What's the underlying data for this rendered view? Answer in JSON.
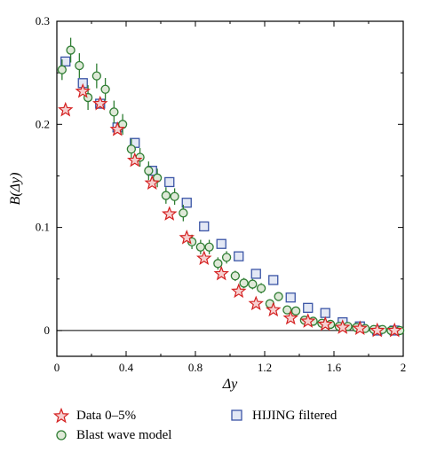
{
  "chart_data": {
    "type": "scatter",
    "xlabel": "Δy",
    "ylabel": "B(Δy)",
    "xlim": [
      0,
      2
    ],
    "ylim": [
      -0.025,
      0.3
    ],
    "xticks": [
      "0",
      "0.4",
      "0.8",
      "1.2",
      "1.6",
      "2"
    ],
    "yticks": [
      "0",
      "0.1",
      "0.2",
      "0.3"
    ],
    "grid": false,
    "legend_position": "bottom",
    "series": [
      {
        "name": "Data 0–5%",
        "marker": "star",
        "color": "#d42020",
        "points": [
          [
            0.05,
            0.214
          ],
          [
            0.15,
            0.232
          ],
          [
            0.25,
            0.22
          ],
          [
            0.35,
            0.195
          ],
          [
            0.45,
            0.165
          ],
          [
            0.55,
            0.143
          ],
          [
            0.65,
            0.113
          ],
          [
            0.75,
            0.09
          ],
          [
            0.85,
            0.07
          ],
          [
            0.95,
            0.055
          ],
          [
            1.05,
            0.038
          ],
          [
            1.15,
            0.026
          ],
          [
            1.25,
            0.02
          ],
          [
            1.35,
            0.012
          ],
          [
            1.45,
            0.009
          ],
          [
            1.55,
            0.006
          ],
          [
            1.65,
            0.003
          ],
          [
            1.75,
            0.002
          ],
          [
            1.85,
            0.0
          ],
          [
            1.95,
            0.0
          ]
        ]
      },
      {
        "name": "Blast wave model",
        "marker": "circle",
        "color": "#2e7d32",
        "points": [
          [
            0.03,
            0.253,
            0.01
          ],
          [
            0.08,
            0.272,
            0.012
          ],
          [
            0.13,
            0.257,
            0.012
          ],
          [
            0.18,
            0.226,
            0.012
          ],
          [
            0.23,
            0.247,
            0.012
          ],
          [
            0.28,
            0.234,
            0.011
          ],
          [
            0.33,
            0.212,
            0.011
          ],
          [
            0.38,
            0.2,
            0.01
          ],
          [
            0.43,
            0.176,
            0.01
          ],
          [
            0.48,
            0.168,
            0.009
          ],
          [
            0.53,
            0.155,
            0.009
          ],
          [
            0.58,
            0.148,
            0.009
          ],
          [
            0.63,
            0.131,
            0.008
          ],
          [
            0.68,
            0.13,
            0.008
          ],
          [
            0.73,
            0.114,
            0.008
          ],
          [
            0.78,
            0.086,
            0.007
          ],
          [
            0.83,
            0.081,
            0.007
          ],
          [
            0.88,
            0.081,
            0.007
          ],
          [
            0.93,
            0.065,
            0.006
          ],
          [
            0.98,
            0.071,
            0.006
          ],
          [
            1.03,
            0.053,
            0.005
          ],
          [
            1.08,
            0.046,
            0.005
          ],
          [
            1.13,
            0.045,
            0.005
          ],
          [
            1.18,
            0.041,
            0.005
          ],
          [
            1.23,
            0.026,
            0.004
          ],
          [
            1.28,
            0.033,
            0.004
          ],
          [
            1.33,
            0.02,
            0.004
          ],
          [
            1.38,
            0.019,
            0.004
          ],
          [
            1.43,
            0.01,
            0.003
          ],
          [
            1.48,
            0.009,
            0.003
          ],
          [
            1.53,
            0.007,
            0.003
          ],
          [
            1.58,
            0.006,
            0.003
          ],
          [
            1.63,
            0.004,
            0.002
          ],
          [
            1.68,
            0.004,
            0.002
          ],
          [
            1.73,
            0.003,
            0.002
          ],
          [
            1.78,
            0.002,
            0.002
          ],
          [
            1.83,
            0.001,
            0.002
          ],
          [
            1.88,
            0.001,
            0.002
          ],
          [
            1.93,
            0.0,
            0.002
          ],
          [
            1.98,
            0.0,
            0.002
          ]
        ]
      },
      {
        "name": "HIJING filtered",
        "marker": "square",
        "color": "#3b55a6",
        "points": [
          [
            0.05,
            0.261
          ],
          [
            0.15,
            0.24
          ],
          [
            0.25,
            0.22
          ],
          [
            0.35,
            0.197
          ],
          [
            0.45,
            0.182
          ],
          [
            0.55,
            0.155
          ],
          [
            0.65,
            0.144
          ],
          [
            0.75,
            0.124
          ],
          [
            0.85,
            0.101
          ],
          [
            0.95,
            0.084
          ],
          [
            1.05,
            0.072
          ],
          [
            1.15,
            0.055
          ],
          [
            1.25,
            0.049
          ],
          [
            1.35,
            0.032
          ],
          [
            1.45,
            0.022
          ],
          [
            1.55,
            0.017
          ],
          [
            1.65,
            0.008
          ],
          [
            1.75,
            0.004
          ],
          [
            1.85,
            0.0
          ],
          [
            1.95,
            0.0
          ]
        ]
      }
    ]
  }
}
